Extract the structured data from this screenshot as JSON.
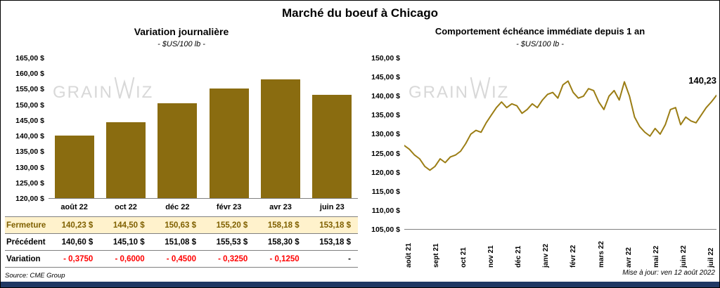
{
  "page": {
    "title": "Marché du boeuf à Chicago",
    "source": "Source: CME Group",
    "updated": "Mise à jour: ven 12 août 2022",
    "watermark_left": "GRAIN",
    "watermark_right": "IZ"
  },
  "colors": {
    "bar": "#8a6c10",
    "line": "#9b7d14",
    "negative": "#ff0000",
    "fermeture_bg": "#fff2cc",
    "fermeture_text": "#7f6000",
    "footer": "#1f3864",
    "watermark": "#d8d8d8"
  },
  "chart_data": [
    {
      "type": "bar",
      "title": "Variation journalière",
      "subtitle": "- $US/100 lb -",
      "categories": [
        "août 22",
        "oct 22",
        "déc 22",
        "févr 23",
        "avr 23",
        "juin 23"
      ],
      "values": [
        140.23,
        144.5,
        150.63,
        155.2,
        158.18,
        153.18
      ],
      "ylim": [
        120,
        165
      ],
      "ytick_step": 5,
      "ytick_labels": [
        "165,00 $",
        "160,00 $",
        "155,00 $",
        "150,00 $",
        "145,00 $",
        "140,00 $",
        "135,00 $",
        "130,00 $",
        "125,00 $",
        "120,00 $"
      ],
      "grid": false,
      "legend": "none"
    },
    {
      "type": "line",
      "title": "Comportement échéance immédiate depuis 1 an",
      "subtitle": "- $US/100 lb -",
      "x_labels": [
        "août 21",
        "sept 21",
        "oct 21",
        "nov 21",
        "déc 21",
        "janv 22",
        "févr 22",
        "mars 22",
        "avr 22",
        "mai 22",
        "juin 22",
        "juil 22"
      ],
      "values": [
        127.0,
        126.0,
        124.5,
        123.5,
        121.5,
        120.5,
        121.5,
        123.5,
        122.5,
        124.0,
        124.5,
        125.5,
        127.5,
        130.0,
        131.0,
        130.5,
        133.0,
        135.0,
        137.0,
        138.5,
        137.0,
        138.0,
        137.5,
        135.5,
        136.5,
        138.0,
        137.0,
        139.0,
        140.5,
        141.0,
        139.5,
        143.0,
        144.0,
        141.0,
        139.5,
        140.0,
        142.0,
        141.5,
        138.5,
        136.5,
        140.0,
        141.5,
        139.0,
        143.8,
        140.0,
        134.5,
        132.0,
        130.5,
        129.5,
        131.5,
        130.0,
        132.5,
        136.5,
        137.0,
        132.5,
        134.5,
        133.5,
        133.0,
        135.0,
        137.0,
        138.5,
        140.23
      ],
      "ylim": [
        105,
        150
      ],
      "ytick_step": 5,
      "ytick_labels": [
        "150,00 $",
        "145,00 $",
        "140,00 $",
        "135,00 $",
        "130,00 $",
        "125,00 $",
        "120,00 $",
        "115,00 $",
        "110,00 $",
        "105,00 $"
      ],
      "end_label": "140,23",
      "grid": false,
      "legend": "none"
    }
  ],
  "table": {
    "rows": [
      {
        "label": "Fermeture",
        "values": [
          "140,23  $",
          "144,50  $",
          "150,63  $",
          "155,20  $",
          "158,18  $",
          "153,18  $"
        ]
      },
      {
        "label": "Précédent",
        "values": [
          "140,60  $",
          "145,10  $",
          "151,08  $",
          "155,53  $",
          "158,30  $",
          "153,18  $"
        ]
      },
      {
        "label": "Variation",
        "values": [
          "- 0,3750",
          "- 0,6000",
          "- 0,4500",
          "- 0,3250",
          "- 0,1250",
          "-"
        ]
      }
    ]
  }
}
